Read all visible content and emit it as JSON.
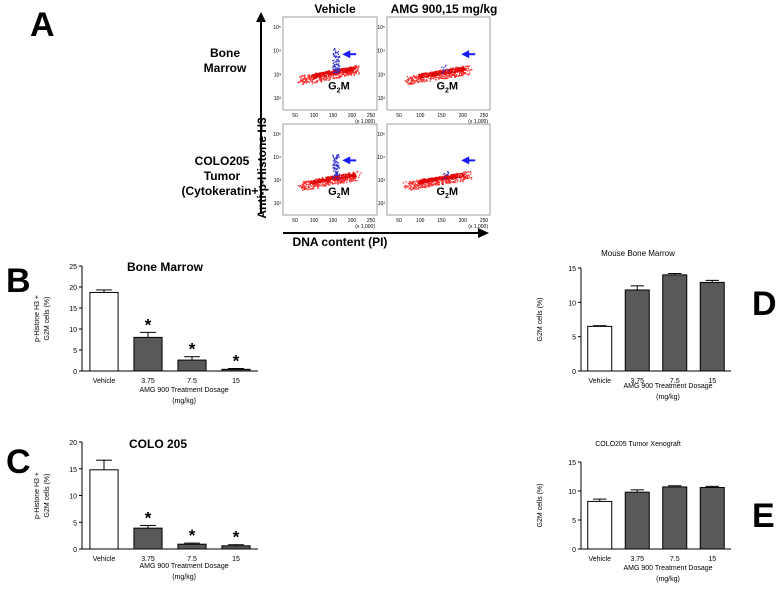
{
  "panel_a": {
    "letter": "A",
    "col_titles": [
      "Vehicle",
      "AMG 900,15 mg/kg"
    ],
    "row_labels": [
      {
        "lines": [
          "Bone",
          "Marrow"
        ]
      },
      {
        "lines": [
          "COLO205",
          "Tumor",
          "(Cytokeratin+)"
        ]
      }
    ],
    "y_axis_title": "Anti-p-Histone H3",
    "x_axis_title": "DNA content (PI)",
    "gate_label_main": "G",
    "gate_label_sub": "2",
    "gate_label_end": "M",
    "x_ticks": [
      "50",
      "100",
      "150",
      "200",
      "250"
    ],
    "x_tick_unit": "(x 1,000)",
    "y_ticks": [
      "10⁵",
      "10⁴",
      "10³",
      "10²"
    ],
    "arrow_color": "#1a1aff",
    "g2m_dot_color": "#3333cc",
    "bulk_dot_color": "#ff2a2a"
  },
  "chart_data": [
    {
      "id": "B",
      "type": "bar",
      "panel_letter": "B",
      "title": "Bone Marrow",
      "categories": [
        "Vehicle",
        "3.75",
        "7.5",
        "15"
      ],
      "values": [
        18.7,
        8.0,
        2.6,
        0.4
      ],
      "errors": [
        0.6,
        1.2,
        0.8,
        0.2
      ],
      "significant": [
        false,
        true,
        true,
        true
      ],
      "significance_mark": "*",
      "ylabel": [
        "p-Histone H3 +",
        "G2M cells (%)"
      ],
      "xlabel": [
        "AMG 900 Treatment Dosage",
        "(mg/kg)"
      ],
      "ylim": [
        0,
        25
      ],
      "yticks": [
        0,
        5,
        10,
        15,
        20,
        25
      ],
      "bar_colors": [
        "#ffffff",
        "#595959",
        "#595959",
        "#595959"
      ]
    },
    {
      "id": "C",
      "type": "bar",
      "panel_letter": "C",
      "title": "COLO 205",
      "categories": [
        "Vehicle",
        "3.75",
        "7.5",
        "15"
      ],
      "values": [
        14.8,
        3.9,
        0.9,
        0.6
      ],
      "errors": [
        1.8,
        0.5,
        0.2,
        0.2
      ],
      "significant": [
        false,
        true,
        true,
        true
      ],
      "significance_mark": "*",
      "ylabel": [
        "p-Histone H3 +",
        "G2M cells (%)"
      ],
      "xlabel": [
        "AMG 900 Treatment Dosage",
        "(mg/kg)"
      ],
      "ylim": [
        0,
        20
      ],
      "yticks": [
        0,
        5,
        10,
        15,
        20
      ],
      "bar_colors": [
        "#ffffff",
        "#595959",
        "#595959",
        "#595959"
      ]
    },
    {
      "id": "D",
      "type": "bar",
      "panel_letter": "D",
      "title": "Mouse Bone Marrow",
      "categories": [
        "Vehicle",
        "3.75",
        "7.5",
        "15"
      ],
      "values": [
        6.5,
        11.8,
        14.0,
        12.9
      ],
      "errors": [
        0.1,
        0.6,
        0.2,
        0.3
      ],
      "significant": [
        false,
        false,
        false,
        false
      ],
      "significance_mark": "",
      "ylabel": [
        "G2M cells (%)"
      ],
      "xlabel": [
        "AMG 900 Treatment Dosage",
        "(mg/kg)"
      ],
      "ylim": [
        0,
        15
      ],
      "yticks": [
        0,
        5,
        10,
        15
      ],
      "bar_colors": [
        "#ffffff",
        "#595959",
        "#595959",
        "#595959"
      ]
    },
    {
      "id": "E",
      "type": "bar",
      "panel_letter": "E",
      "title": "COLO205 Tumor Xenograft",
      "categories": [
        "Vehicle",
        "3.75",
        "7.5",
        "15"
      ],
      "values": [
        8.2,
        9.8,
        10.7,
        10.6
      ],
      "errors": [
        0.4,
        0.4,
        0.2,
        0.2
      ],
      "significant": [
        false,
        false,
        false,
        false
      ],
      "significance_mark": "",
      "ylabel": [
        "G2M cells (%)"
      ],
      "xlabel": [
        "AMG 900 Treatment Dosage",
        "(mg/kg)"
      ],
      "ylim": [
        0,
        15
      ],
      "yticks": [
        0,
        5,
        10,
        15
      ],
      "bar_colors": [
        "#ffffff",
        "#595959",
        "#595959",
        "#595959"
      ]
    }
  ]
}
